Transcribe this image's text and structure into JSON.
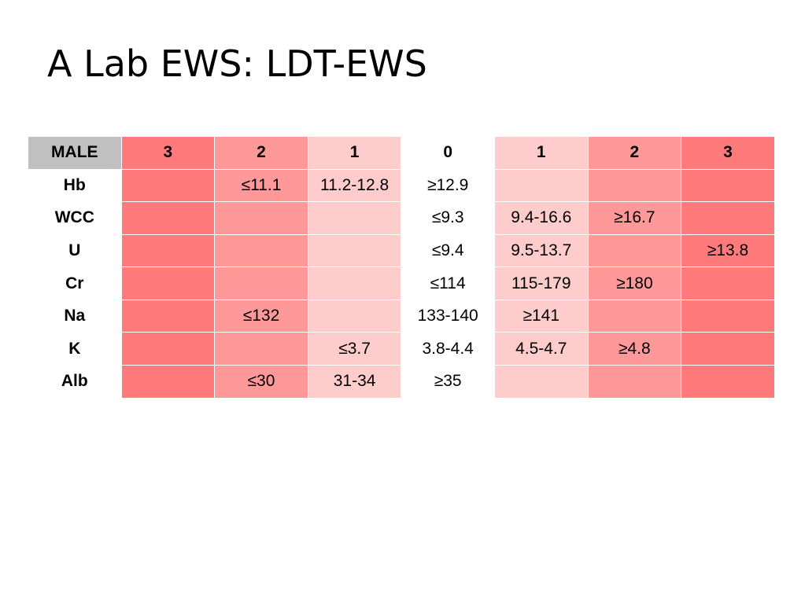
{
  "slide": {
    "title": "A Lab EWS: LDT-EWS"
  },
  "table": {
    "corner_label": "MALE",
    "score_headers": [
      "3",
      "2",
      "1",
      "0",
      "1",
      "2",
      "3"
    ],
    "score_levels": [
      3,
      2,
      1,
      0,
      1,
      2,
      3
    ],
    "rows": [
      {
        "label": "Hb",
        "cells": [
          "",
          "≤11.1",
          "11.2-12.8",
          "≥12.9",
          "",
          "",
          ""
        ]
      },
      {
        "label": "WCC",
        "cells": [
          "",
          "",
          "",
          "≤9.3",
          "9.4-16.6",
          "≥16.7",
          ""
        ]
      },
      {
        "label": "U",
        "cells": [
          "",
          "",
          "",
          "≤9.4",
          "9.5-13.7",
          "",
          "≥13.8"
        ]
      },
      {
        "label": "Cr",
        "cells": [
          "",
          "",
          "",
          "≤114",
          "115-179",
          "≥180",
          ""
        ]
      },
      {
        "label": "Na",
        "cells": [
          "",
          "≤132",
          "",
          "133-140",
          "≥141",
          "",
          ""
        ]
      },
      {
        "label": "K",
        "cells": [
          "",
          "",
          "≤3.7",
          "3.8-4.4",
          "4.5-4.7",
          "≥4.8",
          ""
        ]
      },
      {
        "label": "Alb",
        "cells": [
          "",
          "≤30",
          "31-34",
          "≥35",
          "",
          "",
          ""
        ]
      }
    ]
  },
  "colors": {
    "score_0": "#ffffff",
    "score_1": "#ffcccc",
    "score_2": "#ff9999",
    "score_3": "#ff7b7b",
    "corner": "#c0c0c0"
  }
}
